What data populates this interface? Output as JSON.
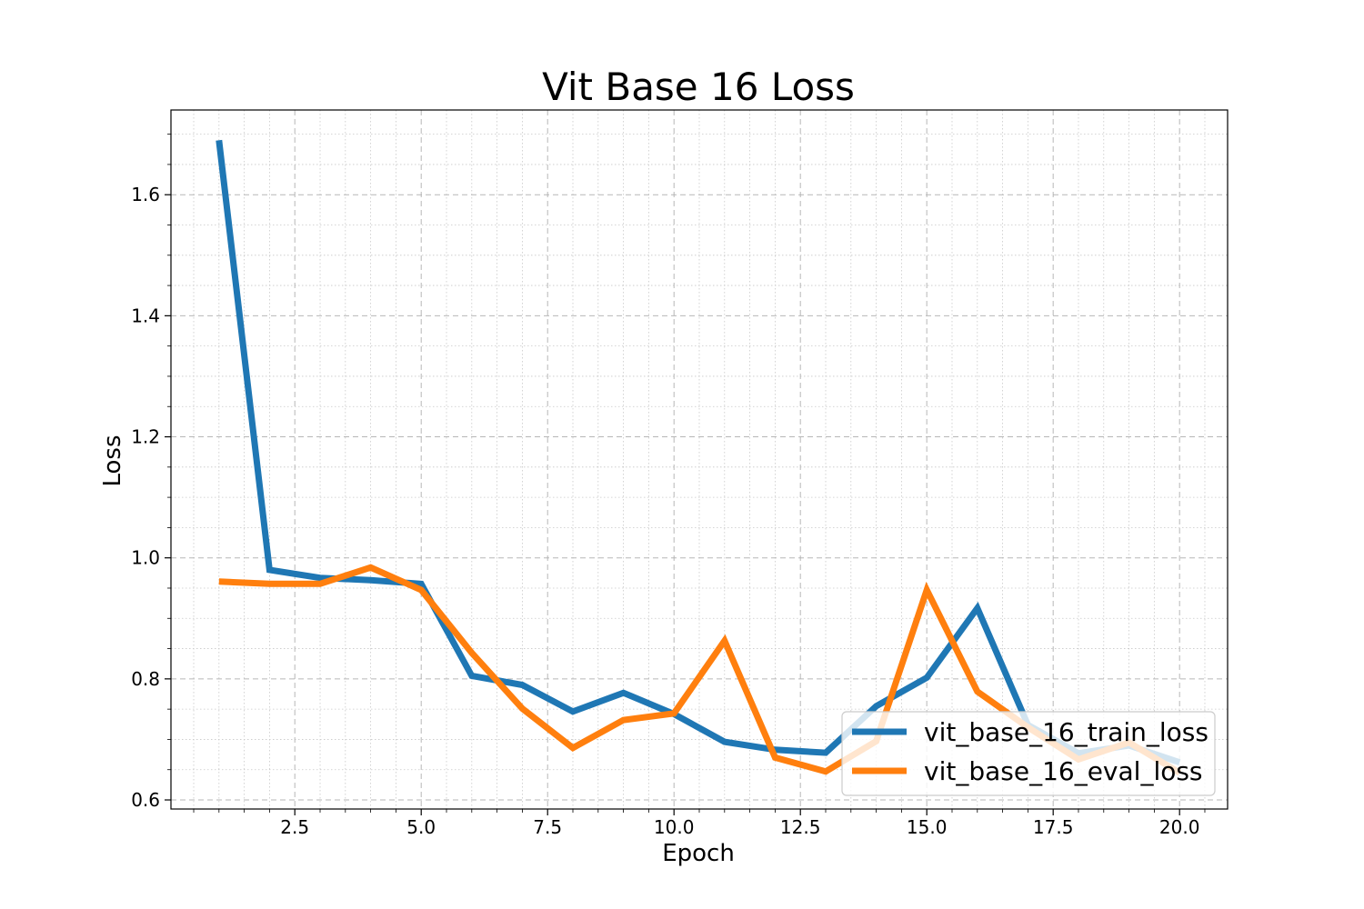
{
  "chart_data": {
    "type": "line",
    "title": "Vit Base 16 Loss",
    "xlabel": "Epoch",
    "ylabel": "Loss",
    "xlim": [
      0.05,
      20.95
    ],
    "ylim": [
      0.585,
      1.74
    ],
    "xticks": [
      2.5,
      5.0,
      7.5,
      10.0,
      12.5,
      15.0,
      17.5,
      20.0
    ],
    "xtick_labels": [
      "2.5",
      "5.0",
      "7.5",
      "10.0",
      "12.5",
      "15.0",
      "17.5",
      "20.0"
    ],
    "yticks": [
      0.6,
      0.8,
      1.0,
      1.2,
      1.4,
      1.6
    ],
    "ytick_labels": [
      "0.6",
      "0.8",
      "1.0",
      "1.2",
      "1.4",
      "1.6"
    ],
    "grid": true,
    "legend_position": "lower-right",
    "x": [
      1,
      2,
      3,
      4,
      5,
      6,
      7,
      8,
      9,
      10,
      11,
      12,
      13,
      14,
      15,
      16,
      17,
      18,
      19,
      20
    ],
    "series": [
      {
        "name": "vit_base_16_train_loss",
        "color": "#1f77b4",
        "values": [
          1.69,
          0.98,
          0.967,
          0.963,
          0.957,
          0.805,
          0.79,
          0.746,
          0.777,
          0.742,
          0.696,
          0.683,
          0.678,
          0.755,
          0.802,
          0.917,
          0.724,
          0.677,
          0.69,
          0.662
        ]
      },
      {
        "name": "vit_base_16_eval_loss",
        "color": "#ff7f0e",
        "values": [
          0.961,
          0.957,
          0.957,
          0.984,
          0.947,
          0.843,
          0.751,
          0.686,
          0.732,
          0.743,
          0.863,
          0.67,
          0.647,
          0.697,
          0.947,
          0.779,
          0.72,
          0.667,
          0.695,
          0.645
        ]
      }
    ]
  }
}
